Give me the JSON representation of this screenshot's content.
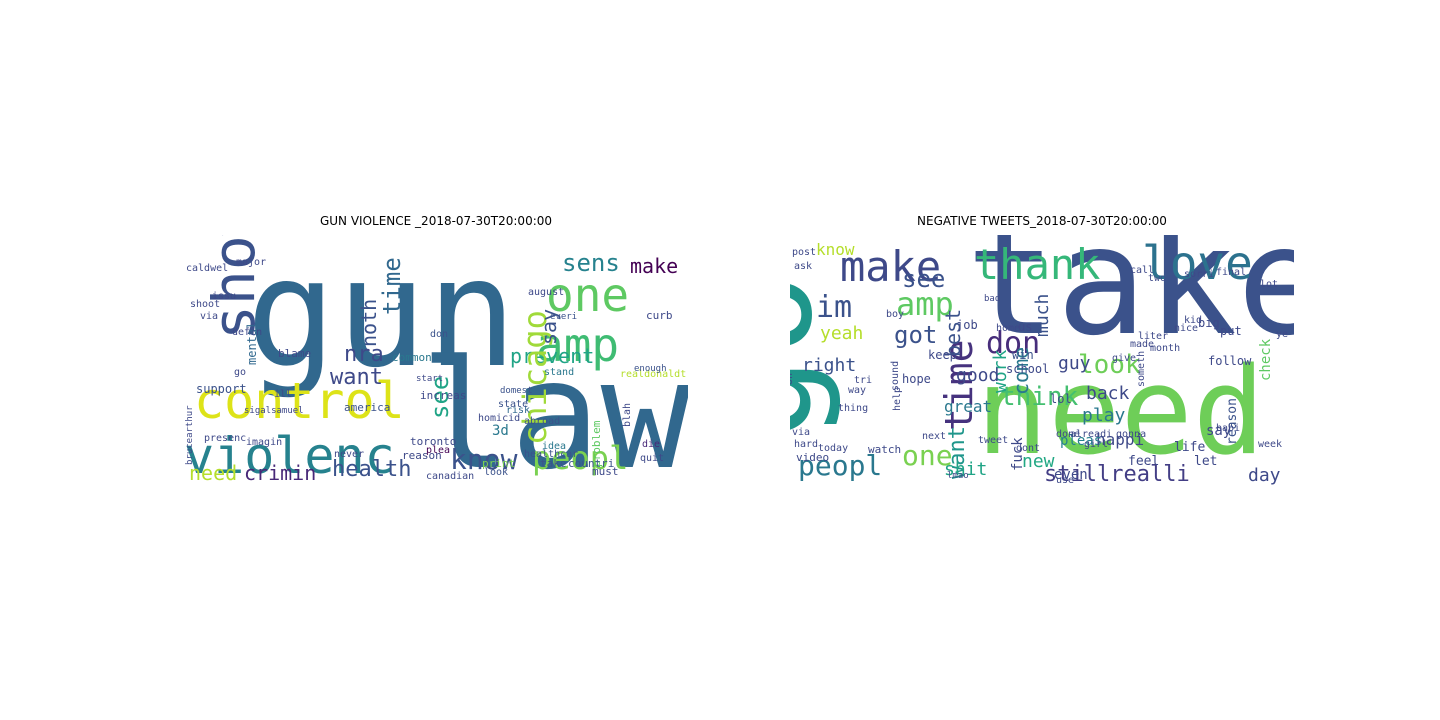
{
  "figure": {
    "panels": [
      {
        "title": "GUN VIOLENCE _2018-07-30T20:00:00",
        "words": [
          {
            "text": "gun",
            "color": "#31688e"
          },
          {
            "text": "law",
            "color": "#31688e"
          },
          {
            "text": "violenc",
            "color": "#26828e"
          },
          {
            "text": "control",
            "color": "#dde318"
          },
          {
            "text": "show",
            "color": "#3b528b"
          },
          {
            "text": "one",
            "color": "#5ec962"
          },
          {
            "text": "amp",
            "color": "#3fbc73"
          },
          {
            "text": "peopl",
            "color": "#7ad151"
          },
          {
            "text": "know",
            "color": "#3b528b"
          },
          {
            "text": "health",
            "color": "#3b528b"
          },
          {
            "text": "crimin",
            "color": "#482878"
          },
          {
            "text": "need",
            "color": "#b5de2b"
          },
          {
            "text": "prevent",
            "color": "#20a486"
          },
          {
            "text": "want",
            "color": "#3e4989"
          },
          {
            "text": "nra",
            "color": "#3e4989"
          },
          {
            "text": "chicago",
            "color": "#a0da39"
          },
          {
            "text": "time",
            "color": "#31688e"
          },
          {
            "text": "sens",
            "color": "#26828e"
          },
          {
            "text": "make",
            "color": "#440154"
          },
          {
            "text": "say",
            "color": "#3b528b"
          },
          {
            "text": "noth",
            "color": "#3b528b"
          },
          {
            "text": "see",
            "color": "#20a486"
          },
          {
            "text": "3d",
            "color": "#2a788e"
          },
          {
            "text": "realdonaldtrump",
            "color": "#b5de2b"
          },
          {
            "text": "support",
            "color": "#3b528b"
          },
          {
            "text": "mental",
            "color": "#31688e"
          },
          {
            "text": "blame",
            "color": "#3e4989"
          },
          {
            "text": "common",
            "color": "#2a788e"
          },
          {
            "text": "toronto",
            "color": "#3e4989"
          },
          {
            "text": "increas",
            "color": "#3e4989"
          },
          {
            "text": "america",
            "color": "#3b528b"
          },
          {
            "text": "homicid",
            "color": "#3e4989"
          },
          {
            "text": "print",
            "color": "#7ad151"
          },
          {
            "text": "take",
            "color": "#3b528b"
          },
          {
            "text": "reason",
            "color": "#3e4989"
          },
          {
            "text": "plea",
            "color": "#440154"
          },
          {
            "text": "stand",
            "color": "#2a788e"
          },
          {
            "text": "idea",
            "color": "#2a788e"
          },
          {
            "text": "risk",
            "color": "#31688e"
          },
          {
            "text": "state",
            "color": "#3b528b"
          },
          {
            "text": "abroad",
            "color": "#3b528b"
          },
          {
            "text": "must",
            "color": "#3e4989"
          },
          {
            "text": "problem",
            "color": "#5ec962"
          },
          {
            "text": "countri",
            "color": "#3b528b"
          },
          {
            "text": "die",
            "color": "#482878"
          },
          {
            "text": "quit",
            "color": "#3e4989"
          },
          {
            "text": "blah",
            "color": "#3e4989"
          },
          {
            "text": "enough",
            "color": "#3b528b"
          },
          {
            "text": "curb",
            "color": "#3e4989"
          },
          {
            "text": "everi",
            "color": "#3b528b"
          },
          {
            "text": "august",
            "color": "#3e4989"
          },
          {
            "text": "domest",
            "color": "#3b528b"
          },
          {
            "text": "major",
            "color": "#3e4989"
          },
          {
            "text": "issu",
            "color": "#3e4989"
          },
          {
            "text": "defin",
            "color": "#3e4989"
          },
          {
            "text": "brucearthur",
            "color": "#3e4989"
          },
          {
            "text": "sigalsamuel",
            "color": "#3e4989"
          },
          {
            "text": "presenc",
            "color": "#3e4989"
          },
          {
            "text": "imagin",
            "color": "#3e4989"
          },
          {
            "text": "never",
            "color": "#3e4989"
          },
          {
            "text": "healthcar",
            "color": "#3b528b"
          },
          {
            "text": "canadian",
            "color": "#3e4989"
          },
          {
            "text": "look",
            "color": "#3b528b"
          },
          {
            "text": "start",
            "color": "#3e4989"
          },
          {
            "text": "don",
            "color": "#3b528b"
          },
          {
            "text": "go",
            "color": "#3e4989"
          },
          {
            "text": "ill",
            "color": "#3e4989"
          },
          {
            "text": "shoot",
            "color": "#3e4989"
          },
          {
            "text": "caldwel",
            "color": "#3e4989"
          },
          {
            "text": "via",
            "color": "#3e4989"
          }
        ]
      },
      {
        "title": "NEGATIVE TWEETS_2018-07-30T20:00:00",
        "words": [
          {
            "text": "take",
            "color": "#3b528b"
          },
          {
            "text": "need",
            "color": "#6ece58"
          },
          {
            "text": "go",
            "color": "#1f968b"
          },
          {
            "text": "love",
            "color": "#2c728e"
          },
          {
            "text": "thank",
            "color": "#35b779"
          },
          {
            "text": "make",
            "color": "#3e4989"
          },
          {
            "text": "time",
            "color": "#46327e"
          },
          {
            "text": "peopl",
            "color": "#2a788e"
          },
          {
            "text": "one",
            "color": "#7ad151"
          },
          {
            "text": "think",
            "color": "#44bf70"
          },
          {
            "text": "look",
            "color": "#6ece58"
          },
          {
            "text": "stillrealli",
            "color": "#433e85"
          },
          {
            "text": "want",
            "color": "#1f968b"
          },
          {
            "text": "amp",
            "color": "#5ec962"
          },
          {
            "text": "im",
            "color": "#3b528b"
          },
          {
            "text": "don",
            "color": "#472d7b"
          },
          {
            "text": "see",
            "color": "#3b528b"
          },
          {
            "text": "know",
            "color": "#b5de2b"
          },
          {
            "text": "got",
            "color": "#3b528b"
          },
          {
            "text": "yeah",
            "color": "#b5de2b"
          },
          {
            "text": "best",
            "color": "#3b528b"
          },
          {
            "text": "come",
            "color": "#2a788e"
          },
          {
            "text": "right",
            "color": "#3b528b"
          },
          {
            "text": "work",
            "color": "#20a486"
          },
          {
            "text": "good",
            "color": "#3e4989"
          },
          {
            "text": "guy",
            "color": "#3e4989"
          },
          {
            "text": "much",
            "color": "#3b528b"
          },
          {
            "text": "back",
            "color": "#3e4989"
          },
          {
            "text": "play",
            "color": "#2a788e"
          },
          {
            "text": "shit",
            "color": "#20a486"
          },
          {
            "text": "new",
            "color": "#22a884"
          },
          {
            "text": "day",
            "color": "#3e4989"
          },
          {
            "text": "great",
            "color": "#2a788e"
          },
          {
            "text": "happi",
            "color": "#3e4989"
          },
          {
            "text": "say",
            "color": "#3e4989"
          },
          {
            "text": "pleas",
            "color": "#26828e"
          },
          {
            "text": "fuck",
            "color": "#3e4989"
          },
          {
            "text": "lol",
            "color": "#3e4989"
          },
          {
            "text": "even",
            "color": "#3e4989"
          },
          {
            "text": "feel",
            "color": "#3e4989"
          },
          {
            "text": "life",
            "color": "#3e4989"
          },
          {
            "text": "let",
            "color": "#3e4989"
          },
          {
            "text": "reason",
            "color": "#3b528b"
          },
          {
            "text": "check",
            "color": "#5ec962"
          },
          {
            "text": "follow",
            "color": "#3e4989"
          },
          {
            "text": "put",
            "color": "#3e4989"
          },
          {
            "text": "big",
            "color": "#3e4989"
          },
          {
            "text": "ye",
            "color": "#3e4989"
          },
          {
            "text": "lot",
            "color": "#3e4989"
          },
          {
            "text": "us",
            "color": "#3e4989"
          },
          {
            "text": "win",
            "color": "#3b528b"
          },
          {
            "text": "job",
            "color": "#3e4989"
          },
          {
            "text": "hope",
            "color": "#3e4989"
          },
          {
            "text": "keep",
            "color": "#3e4989"
          },
          {
            "text": "school",
            "color": "#3e4989"
          },
          {
            "text": "watch",
            "color": "#3e4989"
          },
          {
            "text": "video",
            "color": "#3e4989"
          },
          {
            "text": "today",
            "color": "#3e4989"
          },
          {
            "text": "way",
            "color": "#3e4989"
          },
          {
            "text": "help",
            "color": "#3e4989"
          },
          {
            "text": "dont",
            "color": "#3e4989"
          },
          {
            "text": "use",
            "color": "#3e4989"
          },
          {
            "text": "thing",
            "color": "#3e4989"
          },
          {
            "text": "post",
            "color": "#3e4989"
          },
          {
            "text": "call",
            "color": "#3e4989"
          },
          {
            "text": "home",
            "color": "#3e4989"
          },
          {
            "text": "made",
            "color": "#3e4989"
          },
          {
            "text": "month",
            "color": "#3e4989"
          },
          {
            "text": "sorri",
            "color": "#3e4989"
          },
          {
            "text": "final",
            "color": "#3e4989"
          },
          {
            "text": "nice",
            "color": "#3e4989"
          },
          {
            "text": "kid",
            "color": "#3e4989"
          },
          {
            "text": "ask",
            "color": "#3e4989"
          },
          {
            "text": "boy",
            "color": "#3e4989"
          },
          {
            "text": "babi",
            "color": "#3e4989"
          },
          {
            "text": "week",
            "color": "#3e4989"
          },
          {
            "text": "gonna",
            "color": "#3e4989"
          },
          {
            "text": "hard",
            "color": "#3e4989"
          },
          {
            "text": "via",
            "color": "#3e4989"
          },
          {
            "text": "oh",
            "color": "#3e4989"
          },
          {
            "text": "girl",
            "color": "#3e4989"
          },
          {
            "text": "tweet",
            "color": "#3e4989"
          },
          {
            "text": "done",
            "color": "#3e4989"
          },
          {
            "text": "next",
            "color": "#3e4989"
          },
          {
            "text": "sound",
            "color": "#3e4989"
          },
          {
            "text": "alreadi",
            "color": "#3e4989"
          },
          {
            "text": "liter",
            "color": "#3e4989"
          },
          {
            "text": "two",
            "color": "#3e4989"
          },
          {
            "text": "tri",
            "color": "#3e4989"
          },
          {
            "text": "someth",
            "color": "#3e4989"
          },
          {
            "text": "give",
            "color": "#3e4989"
          },
          {
            "text": "lmao",
            "color": "#3e4989"
          },
          {
            "text": "bad",
            "color": "#3e4989"
          }
        ]
      }
    ]
  }
}
